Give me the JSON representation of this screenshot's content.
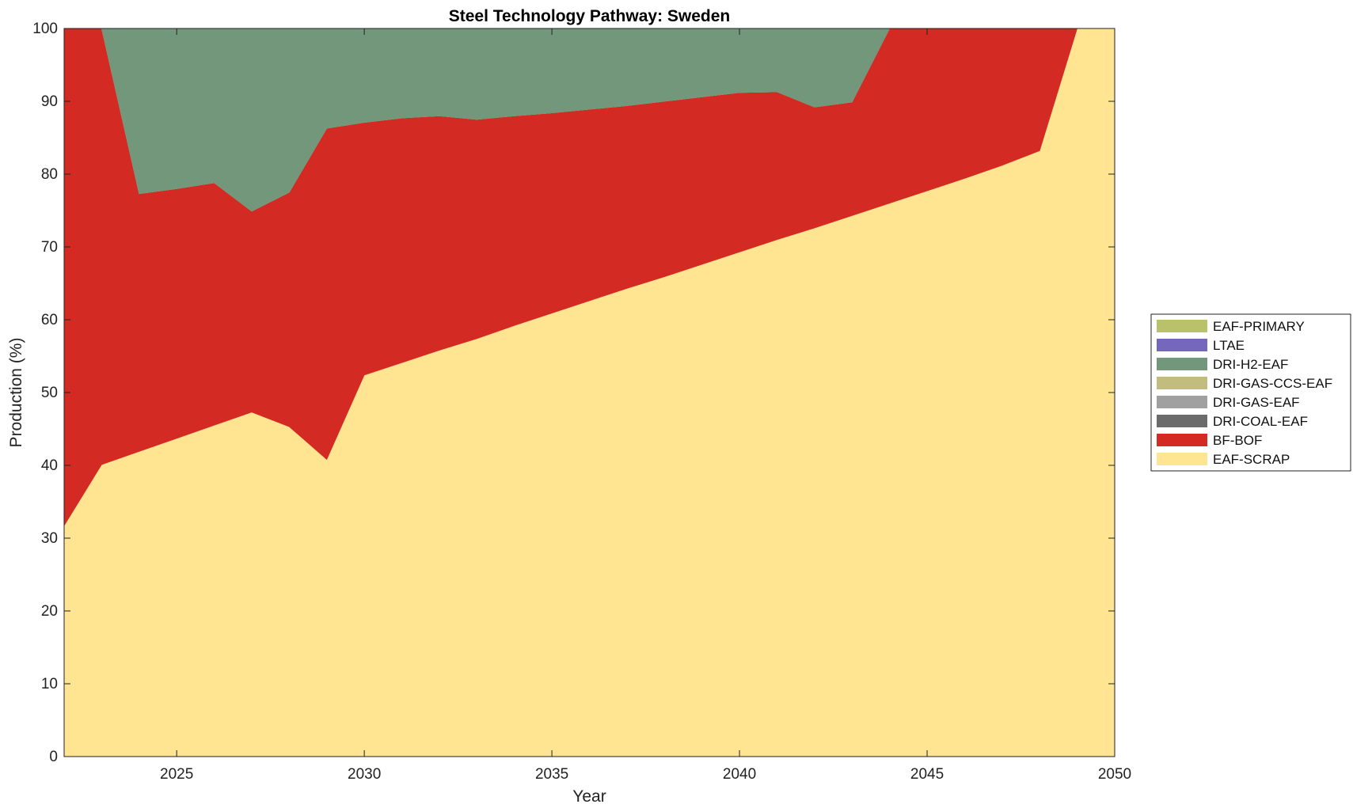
{
  "chart_data": {
    "type": "area",
    "stacked": true,
    "title": "Steel Technology Pathway: Sweden",
    "xlabel": "Year",
    "ylabel": "Production (%)",
    "xlim": [
      2022,
      2050
    ],
    "ylim": [
      0,
      100
    ],
    "x_ticks": [
      2025,
      2030,
      2035,
      2040,
      2045,
      2050
    ],
    "y_ticks": [
      0,
      10,
      20,
      30,
      40,
      50,
      60,
      70,
      80,
      90,
      100
    ],
    "grid": false,
    "legend_position": "right",
    "x": [
      2022,
      2023,
      2024,
      2025,
      2026,
      2027,
      2028,
      2029,
      2030,
      2031,
      2032,
      2033,
      2034,
      2035,
      2036,
      2037,
      2038,
      2039,
      2040,
      2041,
      2042,
      2043,
      2044,
      2045,
      2046,
      2047,
      2048,
      2049,
      2050
    ],
    "series": [
      {
        "name": "EAF-SCRAP",
        "color": "#FFE491",
        "values": [
          31.7,
          40.1,
          41.9,
          43.7,
          45.5,
          47.3,
          45.3,
          40.8,
          52.4,
          54.1,
          55.8,
          57.4,
          59.2,
          60.9,
          62.6,
          64.3,
          65.9,
          67.6,
          69.3,
          71.0,
          72.6,
          74.3,
          76.0,
          77.7,
          79.4,
          81.2,
          83.2,
          100,
          100
        ]
      },
      {
        "name": "BF-BOF",
        "color": "#D32A24",
        "values": [
          68.3,
          59.9,
          35.4,
          34.3,
          33.3,
          27.6,
          32.2,
          45.5,
          34.7,
          33.6,
          32.2,
          30.1,
          28.8,
          27.5,
          26.3,
          25.1,
          24.1,
          23.0,
          21.9,
          20.3,
          16.6,
          15.6,
          24.0,
          22.3,
          20.6,
          18.8,
          16.8,
          0,
          0
        ]
      },
      {
        "name": "DRI-COAL-EAF",
        "color": "#6B6B6B",
        "values": [
          0,
          0,
          0,
          0,
          0,
          0,
          0,
          0,
          0,
          0,
          0,
          0,
          0,
          0,
          0,
          0,
          0,
          0,
          0,
          0,
          0,
          0,
          0,
          0,
          0,
          0,
          0,
          0,
          0
        ]
      },
      {
        "name": "DRI-GAS-EAF",
        "color": "#A0A0A0",
        "values": [
          0,
          0,
          0,
          0,
          0,
          0,
          0,
          0,
          0,
          0,
          0,
          0,
          0,
          0,
          0,
          0,
          0,
          0,
          0,
          0,
          0,
          0,
          0,
          0,
          0,
          0,
          0,
          0,
          0
        ]
      },
      {
        "name": "DRI-GAS-CCS-EAF",
        "color": "#C2BC7F",
        "values": [
          0,
          0,
          0,
          0,
          0,
          0,
          0,
          0,
          0,
          0,
          0,
          0,
          0,
          0,
          0,
          0,
          0,
          0,
          0,
          0,
          0,
          0,
          0,
          0,
          0,
          0,
          0,
          0,
          0
        ]
      },
      {
        "name": "DRI-H2-EAF",
        "color": "#73977B",
        "values": [
          0,
          0,
          22.7,
          22.0,
          21.2,
          25.1,
          22.5,
          13.7,
          12.9,
          12.3,
          12.0,
          12.5,
          12.0,
          11.6,
          11.1,
          10.6,
          10.0,
          9.4,
          8.8,
          8.7,
          10.8,
          10.1,
          0,
          0,
          0,
          0,
          0,
          0,
          0
        ]
      },
      {
        "name": "LTAE",
        "color": "#7467BC",
        "values": [
          0,
          0,
          0,
          0,
          0,
          0,
          0,
          0,
          0,
          0,
          0,
          0,
          0,
          0,
          0,
          0,
          0,
          0,
          0,
          0,
          0,
          0,
          0,
          0,
          0,
          0,
          0,
          0,
          0
        ]
      },
      {
        "name": "EAF-PRIMARY",
        "color": "#B9C26A",
        "values": [
          0,
          0,
          0,
          0,
          0,
          0,
          0,
          0,
          0,
          0,
          0,
          0,
          0,
          0,
          0,
          0,
          0,
          0,
          0,
          0,
          0,
          0,
          0,
          0,
          0,
          0,
          0,
          0,
          0
        ]
      }
    ],
    "legend_order": [
      "EAF-PRIMARY",
      "LTAE",
      "DRI-H2-EAF",
      "DRI-GAS-CCS-EAF",
      "DRI-GAS-EAF",
      "DRI-COAL-EAF",
      "BF-BOF",
      "EAF-SCRAP"
    ]
  }
}
